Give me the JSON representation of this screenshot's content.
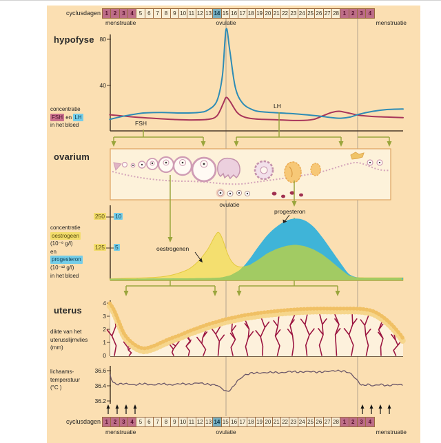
{
  "colors": {
    "panel_bg": "#fbdfb2",
    "menstruation_cell": "#bd6d87",
    "ovulation_cell": "#78afc0",
    "normal_cell": "#f8eed6",
    "lh_line": "#2e8cb5",
    "fsh_line": "#a8355a",
    "estrogen_fill": "#f4df6f",
    "progesterone_fill": "#3fb4d8",
    "overlap_fill": "#a2cb63",
    "olive_arrow": "#9aa53c",
    "vessel_red": "#9b1540",
    "lining_gold": "#f0c064",
    "temperature_line": "#6a5668",
    "axis": "#4a3828"
  },
  "cycle_bar": {
    "label": "cyclusdagen",
    "days": [
      "1",
      "2",
      "3",
      "4",
      "5",
      "6",
      "7",
      "8",
      "9",
      "10",
      "11",
      "12",
      "13",
      "14",
      "15",
      "16",
      "17",
      "18",
      "19",
      "20",
      "21",
      "22",
      "23",
      "24",
      "25",
      "26",
      "27",
      "28",
      "1",
      "2",
      "3",
      "4"
    ],
    "below": {
      "left": "menstruatie",
      "mid": "ovulatie",
      "right": "menstruatie"
    }
  },
  "sections": {
    "hypofyse": {
      "title": "hypofyse",
      "side1": "concentratie",
      "side_fsh": "FSH",
      "side_en": "en",
      "side_lh": "LH",
      "side3": "in het bloed",
      "ticks": [
        "80",
        "40"
      ],
      "fsh_label": "FSH",
      "lh_label": "LH"
    },
    "ovarium": {
      "title": "ovarium",
      "ovulatie": "ovulatie"
    },
    "hormones": {
      "side1": "concentratie",
      "chip_e": "oestrogeen",
      "side2": "(10⁻⁹ g/l)",
      "side3": "en",
      "chip_p": "progesteron",
      "side4": "(10⁻¹² g/l)",
      "side5": "in het bloed",
      "tick_e": [
        "250",
        "125"
      ],
      "tick_p": [
        "10",
        "5"
      ],
      "estrogen_label": "oestrogenen",
      "progesterone_label": "progesteron"
    },
    "uterus": {
      "title": "uterus",
      "side": [
        "dikte van het",
        "uterusslijmvlies",
        "(mm)"
      ],
      "ticks": [
        "4",
        "3",
        "2",
        "1",
        "0"
      ]
    },
    "temperature": {
      "side": [
        "lichaams-",
        "temperatuur",
        "(°C )"
      ],
      "ticks": [
        "36.6",
        "36.4",
        "36.2"
      ]
    }
  },
  "chart_data": [
    {
      "type": "line",
      "title": "concentratie FSH en LH in het bloed (hypofyse)",
      "xlabel": "cyclusdagen",
      "x_range": [
        1,
        32
      ],
      "yticks": [
        40,
        80
      ],
      "ylim": [
        0,
        95
      ],
      "series": [
        {
          "name": "LH",
          "color": "#2e8cb5",
          "points": [
            [
              1.35,
              10
            ],
            [
              3,
              13
            ],
            [
              5,
              15.5
            ],
            [
              7,
              16
            ],
            [
              9,
              15.5
            ],
            [
              11,
              16
            ],
            [
              12,
              18
            ],
            [
              13,
              26
            ],
            [
              13.6,
              48
            ],
            [
              14,
              88
            ],
            [
              14.4,
              70
            ],
            [
              15,
              38
            ],
            [
              15.8,
              24
            ],
            [
              17,
              18
            ],
            [
              18,
              16.5
            ],
            [
              20,
              15.5
            ],
            [
              22,
              14.5
            ],
            [
              24,
              13
            ],
            [
              25.5,
              11.5
            ],
            [
              26.5,
              11
            ],
            [
              27.5,
              12
            ],
            [
              28.5,
              14.5
            ],
            [
              30,
              17
            ],
            [
              31.5,
              18.5
            ],
            [
              33.26,
              19
            ]
          ]
        },
        {
          "name": "FSH",
          "color": "#a8355a",
          "points": [
            [
              1.35,
              14
            ],
            [
              2,
              13.5
            ],
            [
              4,
              12
            ],
            [
              6,
              11
            ],
            [
              8,
              10
            ],
            [
              10,
              9.5
            ],
            [
              12,
              10
            ],
            [
              13,
              13
            ],
            [
              13.7,
              24
            ],
            [
              14,
              29
            ],
            [
              14.4,
              26
            ],
            [
              15.2,
              16
            ],
            [
              16,
              12
            ],
            [
              17,
              10.5
            ],
            [
              18,
              10
            ],
            [
              20,
              9.5
            ],
            [
              22,
              9
            ],
            [
              23.5,
              10
            ],
            [
              24.5,
              13
            ],
            [
              25.5,
              16
            ],
            [
              26.3,
              17
            ],
            [
              27.3,
              15.5
            ],
            [
              28.5,
              13.5
            ],
            [
              30,
              12.5
            ],
            [
              31.5,
              12
            ],
            [
              33.26,
              11.5
            ]
          ]
        }
      ]
    },
    {
      "type": "area",
      "title": "concentratie oestrogeen en progesteron in het bloed",
      "xlabel": "cyclusdagen",
      "x_range": [
        1,
        32
      ],
      "series": [
        {
          "name": "oestrogenen",
          "unit": "10⁻⁹ g/l",
          "yticks": [
            125,
            250
          ],
          "color": "#f4df6f",
          "points": [
            [
              1.35,
              6
            ],
            [
              3,
              8
            ],
            [
              5,
              10
            ],
            [
              7,
              14
            ],
            [
              8,
              20
            ],
            [
              9,
              30
            ],
            [
              10,
              45
            ],
            [
              11,
              75
            ],
            [
              12,
              120
            ],
            [
              12.8,
              172
            ],
            [
              13.2,
              185
            ],
            [
              13.6,
              160
            ],
            [
              14.2,
              100
            ],
            [
              14.8,
              65
            ],
            [
              15.5,
              52
            ],
            [
              16.5,
              58
            ],
            [
              17.5,
              80
            ],
            [
              18.5,
              105
            ],
            [
              19.5,
              122
            ],
            [
              20.5,
              133
            ],
            [
              21.5,
              138
            ],
            [
              22.5,
              133
            ],
            [
              23.5,
              120
            ],
            [
              24.5,
              100
            ],
            [
              25.5,
              72
            ],
            [
              26.5,
              42
            ],
            [
              27.3,
              20
            ],
            [
              28,
              12
            ],
            [
              29,
              10
            ],
            [
              31,
              10
            ],
            [
              33.26,
              10
            ]
          ]
        },
        {
          "name": "progesteron",
          "unit": "10⁻¹² g/l",
          "yticks": [
            5,
            10
          ],
          "color": "#3fb4d8",
          "points": [
            [
              1.35,
              0.25
            ],
            [
              8,
              0.3
            ],
            [
              12,
              0.35
            ],
            [
              13.5,
              0.45
            ],
            [
              14.5,
              0.8
            ],
            [
              15.5,
              1.6
            ],
            [
              16.5,
              3.2
            ],
            [
              17.5,
              5.2
            ],
            [
              18.5,
              7
            ],
            [
              19.5,
              8.3
            ],
            [
              20.5,
              9.2
            ],
            [
              21.5,
              9.55
            ],
            [
              22.5,
              9.3
            ],
            [
              23.5,
              8.3
            ],
            [
              24.5,
              6.6
            ],
            [
              25.5,
              4.6
            ],
            [
              26.5,
              2.6
            ],
            [
              27.3,
              1.1
            ],
            [
              28,
              0.55
            ],
            [
              28.7,
              0.4
            ],
            [
              30,
              0.38
            ],
            [
              33.26,
              0.4
            ]
          ]
        }
      ]
    },
    {
      "type": "area",
      "title": "dikte van het uterusslijmvlies (mm)",
      "xlabel": "cyclusdagen",
      "x_range": [
        1,
        32
      ],
      "yticks": [
        0,
        1,
        2,
        3,
        4
      ],
      "points": [
        [
          1.35,
          4.0
        ],
        [
          1.8,
          3.5
        ],
        [
          2.4,
          2.5
        ],
        [
          3,
          1.6
        ],
        [
          4,
          0.9
        ],
        [
          5,
          0.6
        ],
        [
          6,
          0.75
        ],
        [
          7,
          1.05
        ],
        [
          8,
          1.35
        ],
        [
          9,
          1.6
        ],
        [
          10,
          1.9
        ],
        [
          11,
          2.15
        ],
        [
          12,
          2.4
        ],
        [
          13,
          2.6
        ],
        [
          14,
          2.8
        ],
        [
          15,
          2.95
        ],
        [
          16,
          3.1
        ],
        [
          17,
          3.2
        ],
        [
          18,
          3.3
        ],
        [
          20,
          3.45
        ],
        [
          22,
          3.55
        ],
        [
          24,
          3.6
        ],
        [
          26,
          3.6
        ],
        [
          28,
          3.6
        ],
        [
          29,
          3.55
        ],
        [
          30,
          3.4
        ],
        [
          31,
          3.0
        ],
        [
          32,
          2.4
        ],
        [
          33,
          1.6
        ],
        [
          33.26,
          1.3
        ]
      ]
    },
    {
      "type": "line",
      "title": "lichaamstemperatuur (°C)",
      "xlabel": "cyclusdagen",
      "x_range": [
        1,
        32
      ],
      "yticks": [
        36.2,
        36.4,
        36.6
      ],
      "points": [
        [
          1.35,
          36.56
        ],
        [
          1.6,
          36.46
        ],
        [
          2,
          36.42
        ],
        [
          3,
          36.43
        ],
        [
          4,
          36.41
        ],
        [
          5,
          36.43
        ],
        [
          6,
          36.41
        ],
        [
          7,
          36.43
        ],
        [
          8,
          36.41
        ],
        [
          9,
          36.43
        ],
        [
          10,
          36.42
        ],
        [
          11,
          36.44
        ],
        [
          12,
          36.42
        ],
        [
          13,
          36.41
        ],
        [
          13.6,
          36.36
        ],
        [
          14.1,
          36.32
        ],
        [
          14.6,
          36.36
        ],
        [
          15.2,
          36.46
        ],
        [
          16,
          36.54
        ],
        [
          16.8,
          36.57
        ],
        [
          18,
          36.57
        ],
        [
          19,
          36.58
        ],
        [
          20,
          36.57
        ],
        [
          21,
          36.59
        ],
        [
          22,
          36.58
        ],
        [
          23,
          36.59
        ],
        [
          24,
          36.58
        ],
        [
          25,
          36.59
        ],
        [
          26,
          36.6
        ],
        [
          27,
          36.59
        ],
        [
          27.6,
          36.56
        ],
        [
          28.2,
          36.48
        ],
        [
          28.8,
          36.4
        ],
        [
          29.4,
          36.42
        ],
        [
          30,
          36.4
        ],
        [
          30.8,
          36.42
        ],
        [
          31.6,
          36.4
        ],
        [
          32.4,
          36.42
        ],
        [
          33.26,
          36.41
        ]
      ]
    }
  ]
}
